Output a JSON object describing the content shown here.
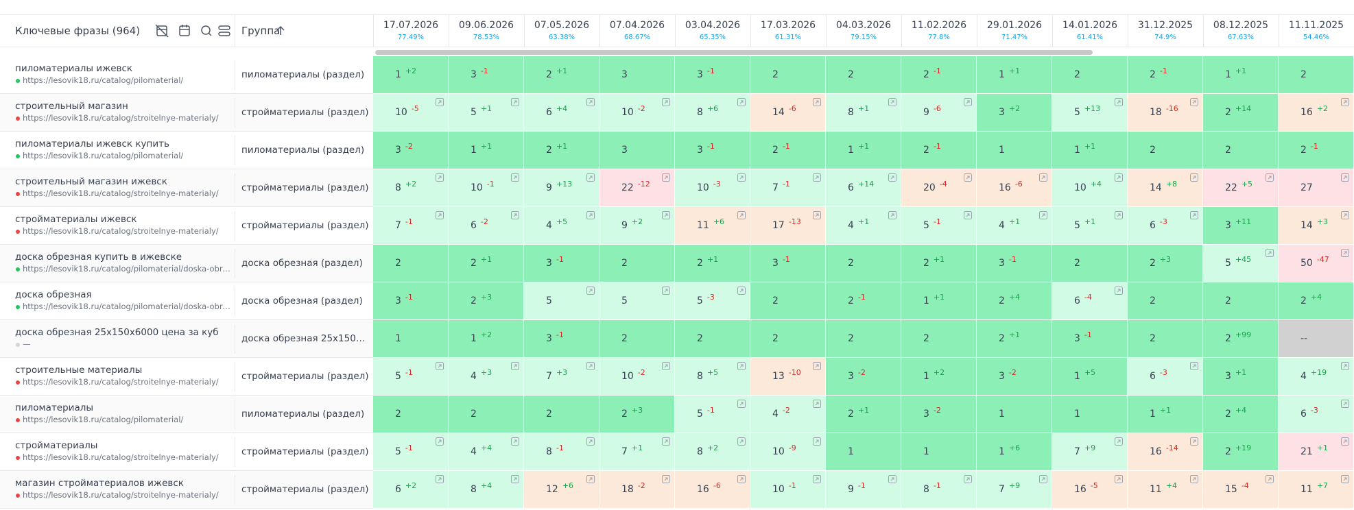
{
  "header": {
    "keywords": "Ключевые фразы (964)",
    "group": "Группа"
  },
  "dates": [
    {
      "date": "17.07.2026",
      "pct": "77.49%"
    },
    {
      "date": "09.06.2026",
      "pct": "78.53%"
    },
    {
      "date": "07.05.2026",
      "pct": "63.38%"
    },
    {
      "date": "07.04.2026",
      "pct": "68.67%"
    },
    {
      "date": "03.04.2026",
      "pct": "65.35%"
    },
    {
      "date": "17.03.2026",
      "pct": "61.31%"
    },
    {
      "date": "04.03.2026",
      "pct": "79.15%"
    },
    {
      "date": "11.02.2026",
      "pct": "77.8%"
    },
    {
      "date": "29.01.2026",
      "pct": "71.47%"
    },
    {
      "date": "14.01.2026",
      "pct": "61.41%"
    },
    {
      "date": "31.12.2025",
      "pct": "74.9%"
    },
    {
      "date": "08.12.2025",
      "pct": "67.63%"
    },
    {
      "date": "11.11.2025",
      "pct": "54.46%"
    }
  ],
  "rows": [
    {
      "phrase": "пиломатериалы ижевск",
      "url": "https://lesovik18.ru/catalog/pilomaterial/",
      "dot": "#22c55e",
      "group": "пиломатериалы (раздел)",
      "cells": [
        {
          "v": 1,
          "d": "+2"
        },
        {
          "v": 3,
          "d": "-1"
        },
        {
          "v": 2,
          "d": "+1"
        },
        {
          "v": 3
        },
        {
          "v": 3,
          "d": "-1"
        },
        {
          "v": 2
        },
        {
          "v": 2
        },
        {
          "v": 2,
          "d": "-1"
        },
        {
          "v": 1,
          "d": "+1"
        },
        {
          "v": 2
        },
        {
          "v": 2,
          "d": "-1"
        },
        {
          "v": 1,
          "d": "+1"
        },
        {
          "v": 2
        }
      ]
    },
    {
      "phrase": "строительный магазин",
      "url": "https://lesovik18.ru/catalog/stroitelnye-materialy/",
      "dot": "#ef4444",
      "group": "стройматериалы (раздел)",
      "cells": [
        {
          "v": 10,
          "d": "-5"
        },
        {
          "v": 5,
          "d": "+1"
        },
        {
          "v": 6,
          "d": "+4"
        },
        {
          "v": 10,
          "d": "-2"
        },
        {
          "v": 8,
          "d": "+6"
        },
        {
          "v": 14,
          "d": "-6"
        },
        {
          "v": 8,
          "d": "+1"
        },
        {
          "v": 9,
          "d": "-6"
        },
        {
          "v": 3,
          "d": "+2"
        },
        {
          "v": 5,
          "d": "+13"
        },
        {
          "v": 18,
          "d": "-16"
        },
        {
          "v": 2,
          "d": "+14"
        },
        {
          "v": 16,
          "d": "+2"
        }
      ]
    },
    {
      "phrase": "пиломатериалы ижевск купить",
      "url": "https://lesovik18.ru/catalog/pilomaterial/",
      "dot": "#22c55e",
      "group": "пиломатериалы (раздел)",
      "cells": [
        {
          "v": 3,
          "d": "-2"
        },
        {
          "v": 1,
          "d": "+1"
        },
        {
          "v": 2,
          "d": "+1"
        },
        {
          "v": 3
        },
        {
          "v": 3,
          "d": "-1"
        },
        {
          "v": 2,
          "d": "-1"
        },
        {
          "v": 1,
          "d": "+1"
        },
        {
          "v": 2,
          "d": "-1"
        },
        {
          "v": 1
        },
        {
          "v": 1,
          "d": "+1"
        },
        {
          "v": 2
        },
        {
          "v": 2
        },
        {
          "v": 2,
          "d": "-1"
        }
      ]
    },
    {
      "phrase": "строительный магазин ижевск",
      "url": "https://lesovik18.ru/catalog/stroitelnye-materialy/",
      "dot": "#ef4444",
      "group": "стройматериалы (раздел)",
      "cells": [
        {
          "v": 8,
          "d": "+2"
        },
        {
          "v": 10,
          "d": "-1"
        },
        {
          "v": 9,
          "d": "+13"
        },
        {
          "v": 22,
          "d": "-12"
        },
        {
          "v": 10,
          "d": "-3"
        },
        {
          "v": 7,
          "d": "-1"
        },
        {
          "v": 6,
          "d": "+14"
        },
        {
          "v": 20,
          "d": "-4"
        },
        {
          "v": 16,
          "d": "-6"
        },
        {
          "v": 10,
          "d": "+4"
        },
        {
          "v": 14,
          "d": "+8"
        },
        {
          "v": 22,
          "d": "+5"
        },
        {
          "v": 27
        }
      ]
    },
    {
      "phrase": "стройматериалы ижевск",
      "url": "https://lesovik18.ru/catalog/stroitelnye-materialy/",
      "dot": "#ef4444",
      "group": "стройматериалы (раздел)",
      "cells": [
        {
          "v": 7,
          "d": "-1"
        },
        {
          "v": 6,
          "d": "-2"
        },
        {
          "v": 4,
          "d": "+5"
        },
        {
          "v": 9,
          "d": "+2"
        },
        {
          "v": 11,
          "d": "+6"
        },
        {
          "v": 17,
          "d": "-13"
        },
        {
          "v": 4,
          "d": "+1"
        },
        {
          "v": 5,
          "d": "-1"
        },
        {
          "v": 4,
          "d": "+1"
        },
        {
          "v": 5,
          "d": "+1"
        },
        {
          "v": 6,
          "d": "-3"
        },
        {
          "v": 3,
          "d": "+11"
        },
        {
          "v": 14,
          "d": "+3"
        }
      ]
    },
    {
      "phrase": "доска обрезная купить в ижевске",
      "url": "https://lesovik18.ru/catalog/pilomaterial/doska-obrezna...",
      "dot": "#22c55e",
      "group": "доска обрезная (раздел)",
      "cells": [
        {
          "v": 2
        },
        {
          "v": 2,
          "d": "+1"
        },
        {
          "v": 3,
          "d": "-1"
        },
        {
          "v": 2
        },
        {
          "v": 2,
          "d": "+1"
        },
        {
          "v": 3,
          "d": "-1"
        },
        {
          "v": 2
        },
        {
          "v": 2,
          "d": "+1"
        },
        {
          "v": 3,
          "d": "-1"
        },
        {
          "v": 2
        },
        {
          "v": 2,
          "d": "+3"
        },
        {
          "v": 5,
          "d": "+45"
        },
        {
          "v": 50,
          "d": "-47"
        }
      ]
    },
    {
      "phrase": "доска обрезная",
      "url": "https://lesovik18.ru/catalog/pilomaterial/doska-obrezna...",
      "dot": "#22c55e",
      "group": "доска обрезная (раздел)",
      "cells": [
        {
          "v": 3,
          "d": "-1"
        },
        {
          "v": 2,
          "d": "+3"
        },
        {
          "v": 5
        },
        {
          "v": 5
        },
        {
          "v": 5,
          "d": "-3"
        },
        {
          "v": 2
        },
        {
          "v": 2,
          "d": "-1"
        },
        {
          "v": 1,
          "d": "+1"
        },
        {
          "v": 2,
          "d": "+4"
        },
        {
          "v": 6,
          "d": "-4"
        },
        {
          "v": 2
        },
        {
          "v": 2
        },
        {
          "v": 2,
          "d": "+4"
        }
      ]
    },
    {
      "phrase": "доска обрезная 25х150х6000 цена за куб",
      "url": "—",
      "dot": "#d4d4d4",
      "group": "доска обрезная 25х150х6...",
      "cells": [
        {
          "v": 1
        },
        {
          "v": 1,
          "d": "+2"
        },
        {
          "v": 3,
          "d": "-1"
        },
        {
          "v": 2
        },
        {
          "v": 2
        },
        {
          "v": 2
        },
        {
          "v": 2
        },
        {
          "v": 2
        },
        {
          "v": 2,
          "d": "+1"
        },
        {
          "v": 3,
          "d": "-1"
        },
        {
          "v": 2
        },
        {
          "v": 2,
          "d": "+99"
        },
        {
          "v": "--"
        }
      ]
    },
    {
      "phrase": "строительные материалы",
      "url": "https://lesovik18.ru/catalog/stroitelnye-materialy/",
      "dot": "#ef4444",
      "group": "стройматериалы (раздел)",
      "cells": [
        {
          "v": 5,
          "d": "-1"
        },
        {
          "v": 4,
          "d": "+3"
        },
        {
          "v": 7,
          "d": "+3"
        },
        {
          "v": 10,
          "d": "-2"
        },
        {
          "v": 8,
          "d": "+5"
        },
        {
          "v": 13,
          "d": "-10"
        },
        {
          "v": 3,
          "d": "-2"
        },
        {
          "v": 1,
          "d": "+2"
        },
        {
          "v": 3,
          "d": "-2"
        },
        {
          "v": 1,
          "d": "+5"
        },
        {
          "v": 6,
          "d": "-3"
        },
        {
          "v": 3,
          "d": "+1"
        },
        {
          "v": 4,
          "d": "+19"
        }
      ]
    },
    {
      "phrase": "пиломатериалы",
      "url": "https://lesovik18.ru/catalog/pilomaterial/",
      "dot": "#ef4444",
      "group": "пиломатериалы (раздел)",
      "cells": [
        {
          "v": 2
        },
        {
          "v": 2
        },
        {
          "v": 2
        },
        {
          "v": 2,
          "d": "+3"
        },
        {
          "v": 5,
          "d": "-1"
        },
        {
          "v": 4,
          "d": "-2"
        },
        {
          "v": 2,
          "d": "+1"
        },
        {
          "v": 3,
          "d": "-2"
        },
        {
          "v": 1
        },
        {
          "v": 1
        },
        {
          "v": 1,
          "d": "+1"
        },
        {
          "v": 2,
          "d": "+4"
        },
        {
          "v": 6,
          "d": "-3"
        }
      ]
    },
    {
      "phrase": "стройматериалы",
      "url": "https://lesovik18.ru/catalog/stroitelnye-materialy/",
      "dot": "#ef4444",
      "group": "стройматериалы (раздел)",
      "cells": [
        {
          "v": 5,
          "d": "-1"
        },
        {
          "v": 4,
          "d": "+4"
        },
        {
          "v": 8,
          "d": "-1"
        },
        {
          "v": 7,
          "d": "+1"
        },
        {
          "v": 8,
          "d": "+2"
        },
        {
          "v": 10,
          "d": "-9"
        },
        {
          "v": 1
        },
        {
          "v": 1
        },
        {
          "v": 1,
          "d": "+6"
        },
        {
          "v": 7,
          "d": "+9"
        },
        {
          "v": 16,
          "d": "-14"
        },
        {
          "v": 2,
          "d": "+19"
        },
        {
          "v": 21,
          "d": "+1"
        }
      ]
    },
    {
      "phrase": "магазин стройматериалов ижевск",
      "url": "https://lesovik18.ru/catalog/stroitelnye-materialy/",
      "dot": "#ef4444",
      "group": "стройматериалы (раздел)",
      "cells": [
        {
          "v": 6,
          "d": "+2"
        },
        {
          "v": 8,
          "d": "+4"
        },
        {
          "v": 12,
          "d": "+6"
        },
        {
          "v": 18,
          "d": "-2"
        },
        {
          "v": 16,
          "d": "-6"
        },
        {
          "v": 10,
          "d": "-1"
        },
        {
          "v": 9,
          "d": "-1"
        },
        {
          "v": 8,
          "d": "-1"
        },
        {
          "v": 7,
          "d": "+9"
        },
        {
          "v": 16,
          "d": "-5"
        },
        {
          "v": 11,
          "d": "+4"
        },
        {
          "v": 15,
          "d": "-4"
        },
        {
          "v": 11,
          "d": "+7"
        }
      ]
    }
  ]
}
